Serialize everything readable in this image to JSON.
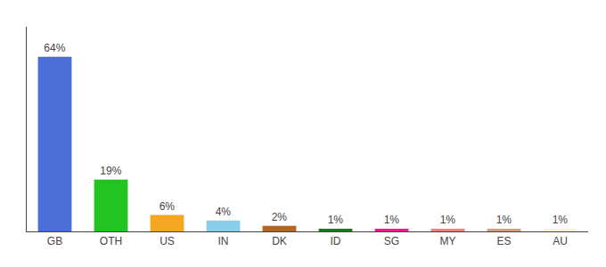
{
  "chart_data": {
    "type": "bar",
    "categories": [
      "GB",
      "OTH",
      "US",
      "IN",
      "DK",
      "ID",
      "SG",
      "MY",
      "ES",
      "AU"
    ],
    "values": [
      64,
      19,
      6,
      4,
      2,
      1,
      1,
      1,
      1,
      1
    ],
    "value_labels": [
      "64%",
      "19%",
      "6%",
      "4%",
      "2%",
      "1%",
      "1%",
      "1%",
      "1%",
      "1%"
    ],
    "colors": [
      "#4a6fd8",
      "#22c422",
      "#f5a623",
      "#87ceeb",
      "#b5651d",
      "#1a7a1a",
      "#f01a8c",
      "#f08080",
      "#d2a080",
      "#f5f0dc"
    ],
    "ylim": [
      0,
      75
    ],
    "grid": false,
    "data_labels": true,
    "tick_labels": "x"
  }
}
